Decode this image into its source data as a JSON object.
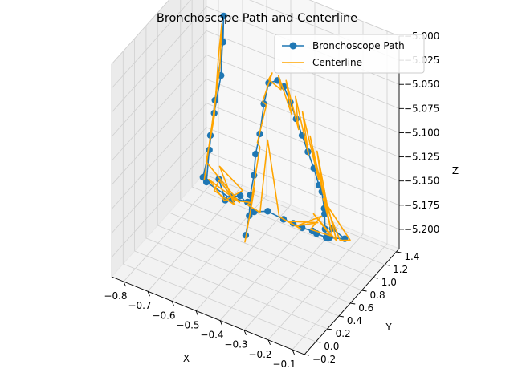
{
  "chart_data": {
    "type": "line3d",
    "title": "Bronchoscope Path and Centerline",
    "xlabel": "X",
    "ylabel": "Y",
    "zlabel": "Z",
    "xlim": [
      -0.85,
      -0.05
    ],
    "ylim": [
      -0.2,
      1.45
    ],
    "zlim": [
      -5.22,
      -5.0
    ],
    "x_ticks": [
      "−0.8",
      "−0.7",
      "−0.6",
      "−0.5",
      "−0.4",
      "−0.3",
      "−0.2",
      "−0.1"
    ],
    "x_tick_values": [
      -0.8,
      -0.7,
      -0.6,
      -0.5,
      -0.4,
      -0.3,
      -0.2,
      -0.1
    ],
    "y_ticks": [
      "−0.2",
      "0.0",
      "0.2",
      "0.4",
      "0.6",
      "0.8",
      "1.0",
      "1.2",
      "1.4"
    ],
    "y_tick_values": [
      -0.2,
      0.0,
      0.2,
      0.4,
      0.6,
      0.8,
      1.0,
      1.2,
      1.4
    ],
    "z_ticks": [
      "−5.000",
      "−5.025",
      "−5.050",
      "−5.075",
      "−5.100",
      "−5.125",
      "−5.150",
      "−5.175",
      "−5.200"
    ],
    "z_tick_values": [
      -5.0,
      -5.025,
      -5.05,
      -5.075,
      -5.1,
      -5.125,
      -5.15,
      -5.175,
      -5.2
    ],
    "grid": true,
    "legend": "top-right",
    "series": [
      {
        "name": "Bronchoscope Path",
        "color": "#1f77b4",
        "marker": "circle",
        "points": [
          [
            -0.37,
            0.12,
            -5.15
          ],
          [
            -0.36,
            0.14,
            -5.13
          ],
          [
            -0.36,
            0.16,
            -5.11
          ],
          [
            -0.35,
            0.18,
            -5.09
          ],
          [
            -0.35,
            0.21,
            -5.07
          ],
          [
            -0.34,
            0.24,
            -5.05
          ],
          [
            -0.33,
            0.27,
            -5.02
          ],
          [
            -0.32,
            0.31,
            -5.0
          ],
          [
            -0.3,
            0.38,
            -5.0
          ],
          [
            -0.29,
            0.45,
            -5.01
          ],
          [
            -0.28,
            0.52,
            -5.03
          ],
          [
            -0.27,
            0.58,
            -5.05
          ],
          [
            -0.26,
            0.64,
            -5.07
          ],
          [
            -0.25,
            0.7,
            -5.09
          ],
          [
            -0.24,
            0.76,
            -5.11
          ],
          [
            -0.23,
            0.81,
            -5.13
          ],
          [
            -0.23,
            0.86,
            -5.14
          ],
          [
            -0.23,
            0.9,
            -5.16
          ],
          [
            -0.24,
            0.95,
            -5.17
          ],
          [
            -0.25,
            1.0,
            -5.19
          ],
          [
            -0.25,
            1.02,
            -5.2
          ],
          [
            -0.25,
            1.03,
            -5.2
          ],
          [
            -0.24,
            1.03,
            -5.2
          ],
          [
            -0.19,
            1.09,
            -5.2
          ],
          [
            -0.23,
            1.04,
            -5.19
          ],
          [
            -0.25,
            1.02,
            -5.2
          ],
          [
            -0.29,
            1.02,
            -5.2
          ],
          [
            -0.31,
            1.03,
            -5.2
          ],
          [
            -0.35,
            1.02,
            -5.2
          ],
          [
            -0.39,
            1.03,
            -5.2
          ],
          [
            -0.43,
            1.03,
            -5.2
          ],
          [
            -0.5,
            1.05,
            -5.2
          ],
          [
            -0.54,
            0.98,
            -5.2
          ],
          [
            -0.6,
            0.99,
            -5.19
          ],
          [
            -0.65,
            1.05,
            -5.2
          ],
          [
            -0.71,
            1.08,
            -5.19
          ],
          [
            -0.66,
            0.98,
            -5.2
          ],
          [
            -0.62,
            0.93,
            -5.19
          ],
          [
            -0.56,
            0.95,
            -5.19
          ],
          [
            -0.64,
            1.02,
            -5.2
          ],
          [
            -0.74,
            0.99,
            -5.19
          ],
          [
            -0.75,
            1.1,
            -5.15
          ],
          [
            -0.72,
            1.04,
            -5.12
          ],
          [
            -0.67,
            0.95,
            -5.07
          ],
          [
            -0.64,
            0.87,
            -5.0
          ],
          [
            -0.65,
            0.9,
            -5.03
          ],
          [
            -0.7,
            0.97,
            -5.1
          ],
          [
            -0.74,
            1.04,
            -5.16
          ],
          [
            -0.79,
            1.14,
            -5.2
          ]
        ]
      },
      {
        "name": "Centerline",
        "color": "#ffa500",
        "marker": "none",
        "points": [
          [
            -0.38,
            0.15,
            -5.16
          ],
          [
            -0.34,
            0.15,
            -5.1
          ],
          [
            -0.36,
            0.17,
            -5.12
          ],
          [
            -0.33,
            0.2,
            -5.06
          ],
          [
            -0.35,
            0.24,
            -5.06
          ],
          [
            -0.32,
            0.27,
            -5.02
          ],
          [
            -0.34,
            0.29,
            -5.02
          ],
          [
            -0.31,
            0.33,
            -4.99
          ],
          [
            -0.33,
            0.35,
            -5.0
          ],
          [
            -0.29,
            0.4,
            -5.01
          ],
          [
            -0.31,
            0.44,
            -5.0
          ],
          [
            -0.27,
            0.5,
            -5.04
          ],
          [
            -0.3,
            0.53,
            -5.01
          ],
          [
            -0.26,
            0.58,
            -5.06
          ],
          [
            -0.28,
            0.61,
            -5.03
          ],
          [
            -0.24,
            0.67,
            -5.09
          ],
          [
            -0.27,
            0.69,
            -5.05
          ],
          [
            -0.22,
            0.76,
            -5.12
          ],
          [
            -0.26,
            0.78,
            -5.08
          ],
          [
            -0.22,
            0.84,
            -5.14
          ],
          [
            -0.25,
            0.86,
            -5.1
          ],
          [
            -0.22,
            0.92,
            -5.16
          ],
          [
            -0.26,
            0.94,
            -5.13
          ],
          [
            -0.22,
            0.99,
            -5.19
          ],
          [
            -0.26,
            1.01,
            -5.16
          ],
          [
            -0.2,
            1.05,
            -5.2
          ],
          [
            -0.17,
            1.1,
            -5.2
          ],
          [
            -0.25,
            1.05,
            -5.17
          ],
          [
            -0.21,
            1.03,
            -5.2
          ],
          [
            -0.3,
            1.01,
            -5.18
          ],
          [
            -0.24,
            1.06,
            -5.2
          ],
          [
            -0.32,
            1.04,
            -5.2
          ],
          [
            -0.27,
            1.02,
            -5.18
          ],
          [
            -0.37,
            1.02,
            -5.2
          ],
          [
            -0.29,
            1.04,
            -5.19
          ],
          [
            -0.41,
            1.03,
            -5.2
          ],
          [
            -0.35,
            1.0,
            -5.2
          ],
          [
            -0.45,
            1.04,
            -5.2
          ],
          [
            -0.51,
            1.09,
            -5.13
          ],
          [
            -0.52,
            1.0,
            -5.2
          ],
          [
            -0.58,
            1.03,
            -5.2
          ],
          [
            -0.55,
            0.96,
            -5.19
          ],
          [
            -0.63,
            1.02,
            -5.2
          ],
          [
            -0.68,
            0.96,
            -5.18
          ],
          [
            -0.72,
            1.04,
            -5.2
          ],
          [
            -0.62,
            0.97,
            -5.2
          ],
          [
            -0.69,
            1.01,
            -5.17
          ],
          [
            -0.58,
            0.95,
            -5.18
          ],
          [
            -0.66,
            0.97,
            -5.2
          ],
          [
            -0.74,
            1.03,
            -5.19
          ],
          [
            -0.61,
            1.02,
            -5.2
          ],
          [
            -0.77,
            1.11,
            -5.18
          ],
          [
            -0.71,
            1.0,
            -5.12
          ],
          [
            -0.68,
            0.95,
            -5.05
          ],
          [
            -0.65,
            0.88,
            -5.01
          ],
          [
            -0.67,
            0.93,
            -5.06
          ],
          [
            -0.72,
            1.0,
            -5.13
          ],
          [
            -0.78,
            1.12,
            -5.2
          ]
        ]
      }
    ]
  }
}
